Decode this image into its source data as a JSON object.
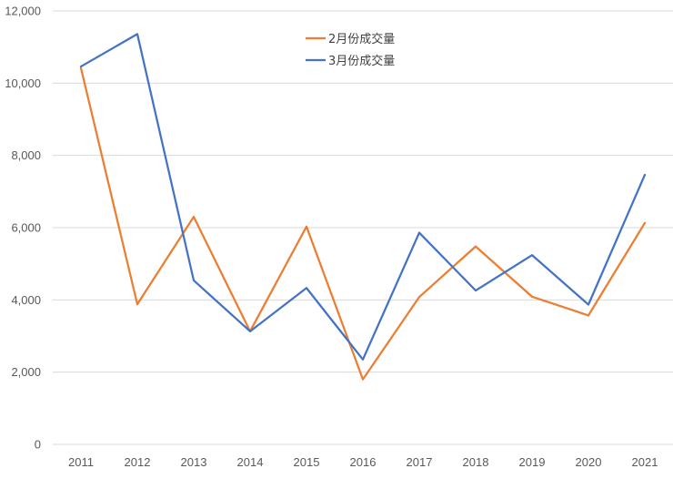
{
  "chart_data": {
    "type": "line",
    "categories": [
      "2011",
      "2012",
      "2013",
      "2014",
      "2015",
      "2016",
      "2017",
      "2018",
      "2019",
      "2020",
      "2021"
    ],
    "series": [
      {
        "name": "2月份成交量",
        "color": "#ED7D31",
        "values": [
          10420,
          3880,
          6300,
          3130,
          6030,
          1800,
          4080,
          5480,
          4090,
          3570,
          6130
        ]
      },
      {
        "name": "3月份成交量",
        "color": "#4472C4",
        "values": [
          10460,
          11360,
          4540,
          3130,
          4330,
          2350,
          5860,
          4260,
          5240,
          3870,
          7460
        ]
      }
    ],
    "ylim": [
      0,
      12000
    ],
    "yticks": [
      0,
      2000,
      4000,
      6000,
      8000,
      10000,
      12000
    ],
    "ytick_labels": [
      "0",
      "2,000",
      "4,000",
      "6,000",
      "8,000",
      "10,000",
      "12,000"
    ],
    "grid": true,
    "legend_position": "top-center",
    "gridline_color": "#D9D9D9"
  }
}
